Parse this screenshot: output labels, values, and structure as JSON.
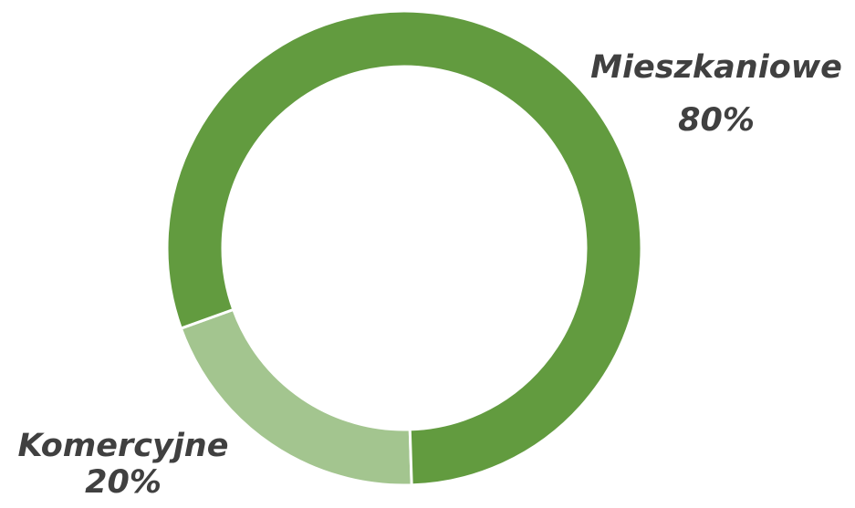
{
  "chart_data": {
    "type": "donut",
    "categories": [
      "Komercyjne",
      "Mieszkaniowe"
    ],
    "values": [
      20,
      80
    ],
    "value_labels": [
      "20%",
      "80%"
    ],
    "colors": [
      "#a3c58f",
      "#629b3f"
    ]
  }
}
